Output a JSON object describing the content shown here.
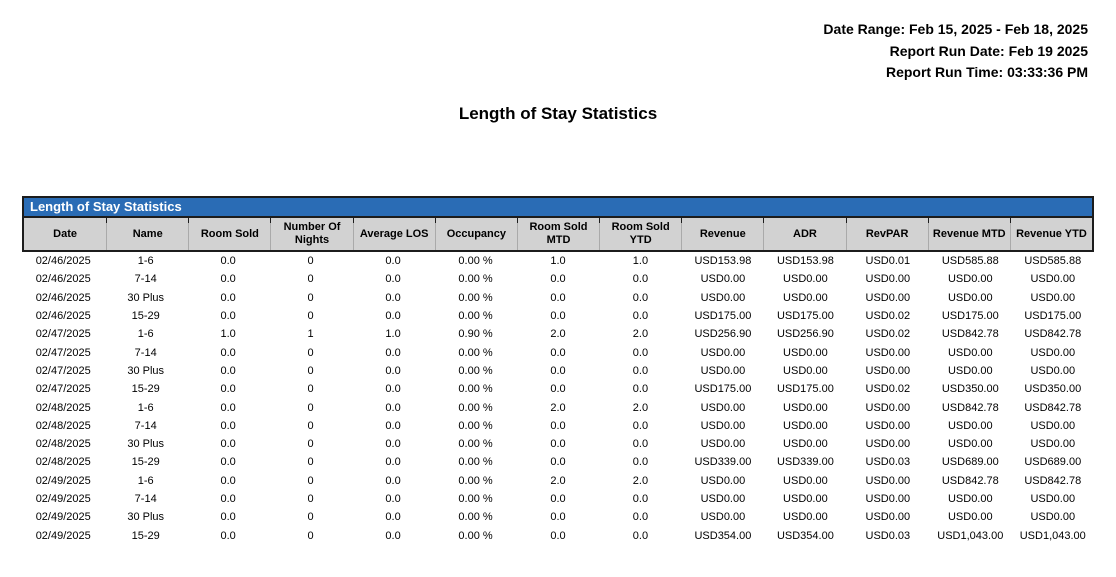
{
  "meta": {
    "date_range": "Date Range: Feb 15, 2025 - Feb 18, 2025",
    "report_run_date": "Report Run Date: Feb 19 2025",
    "report_run_time": "Report Run Time: 03:33:36 PM"
  },
  "page_title": "Length of Stay Statistics",
  "colors": {
    "table_title_bar": "#2a6cb5",
    "table_header_bg": "#d2d2d2",
    "border_dark": "#1c1c1c"
  },
  "table": {
    "title": "Length of Stay Statistics",
    "columns": [
      "Date",
      "Name",
      "Room Sold",
      "Number Of Nights",
      "Average LOS",
      "Occupancy",
      "Room Sold MTD",
      "Room Sold YTD",
      "Revenue",
      "ADR",
      "RevPAR",
      "Revenue MTD",
      "Revenue YTD"
    ],
    "rows": [
      [
        "02/46/2025",
        "1-6",
        "0.0",
        "0",
        "0.0",
        "0.00 %",
        "1.0",
        "1.0",
        "USD153.98",
        "USD153.98",
        "USD0.01",
        "USD585.88",
        "USD585.88"
      ],
      [
        "02/46/2025",
        "7-14",
        "0.0",
        "0",
        "0.0",
        "0.00 %",
        "0.0",
        "0.0",
        "USD0.00",
        "USD0.00",
        "USD0.00",
        "USD0.00",
        "USD0.00"
      ],
      [
        "02/46/2025",
        "30 Plus",
        "0.0",
        "0",
        "0.0",
        "0.00 %",
        "0.0",
        "0.0",
        "USD0.00",
        "USD0.00",
        "USD0.00",
        "USD0.00",
        "USD0.00"
      ],
      [
        "02/46/2025",
        "15-29",
        "0.0",
        "0",
        "0.0",
        "0.00 %",
        "0.0",
        "0.0",
        "USD175.00",
        "USD175.00",
        "USD0.02",
        "USD175.00",
        "USD175.00"
      ],
      [
        "02/47/2025",
        "1-6",
        "1.0",
        "1",
        "1.0",
        "0.90 %",
        "2.0",
        "2.0",
        "USD256.90",
        "USD256.90",
        "USD0.02",
        "USD842.78",
        "USD842.78"
      ],
      [
        "02/47/2025",
        "7-14",
        "0.0",
        "0",
        "0.0",
        "0.00 %",
        "0.0",
        "0.0",
        "USD0.00",
        "USD0.00",
        "USD0.00",
        "USD0.00",
        "USD0.00"
      ],
      [
        "02/47/2025",
        "30 Plus",
        "0.0",
        "0",
        "0.0",
        "0.00 %",
        "0.0",
        "0.0",
        "USD0.00",
        "USD0.00",
        "USD0.00",
        "USD0.00",
        "USD0.00"
      ],
      [
        "02/47/2025",
        "15-29",
        "0.0",
        "0",
        "0.0",
        "0.00 %",
        "0.0",
        "0.0",
        "USD175.00",
        "USD175.00",
        "USD0.02",
        "USD350.00",
        "USD350.00"
      ],
      [
        "02/48/2025",
        "1-6",
        "0.0",
        "0",
        "0.0",
        "0.00 %",
        "2.0",
        "2.0",
        "USD0.00",
        "USD0.00",
        "USD0.00",
        "USD842.78",
        "USD842.78"
      ],
      [
        "02/48/2025",
        "7-14",
        "0.0",
        "0",
        "0.0",
        "0.00 %",
        "0.0",
        "0.0",
        "USD0.00",
        "USD0.00",
        "USD0.00",
        "USD0.00",
        "USD0.00"
      ],
      [
        "02/48/2025",
        "30 Plus",
        "0.0",
        "0",
        "0.0",
        "0.00 %",
        "0.0",
        "0.0",
        "USD0.00",
        "USD0.00",
        "USD0.00",
        "USD0.00",
        "USD0.00"
      ],
      [
        "02/48/2025",
        "15-29",
        "0.0",
        "0",
        "0.0",
        "0.00 %",
        "0.0",
        "0.0",
        "USD339.00",
        "USD339.00",
        "USD0.03",
        "USD689.00",
        "USD689.00"
      ],
      [
        "02/49/2025",
        "1-6",
        "0.0",
        "0",
        "0.0",
        "0.00 %",
        "2.0",
        "2.0",
        "USD0.00",
        "USD0.00",
        "USD0.00",
        "USD842.78",
        "USD842.78"
      ],
      [
        "02/49/2025",
        "7-14",
        "0.0",
        "0",
        "0.0",
        "0.00 %",
        "0.0",
        "0.0",
        "USD0.00",
        "USD0.00",
        "USD0.00",
        "USD0.00",
        "USD0.00"
      ],
      [
        "02/49/2025",
        "30 Plus",
        "0.0",
        "0",
        "0.0",
        "0.00 %",
        "0.0",
        "0.0",
        "USD0.00",
        "USD0.00",
        "USD0.00",
        "USD0.00",
        "USD0.00"
      ],
      [
        "02/49/2025",
        "15-29",
        "0.0",
        "0",
        "0.0",
        "0.00 %",
        "0.0",
        "0.0",
        "USD354.00",
        "USD354.00",
        "USD0.03",
        "USD1,043.00",
        "USD1,043.00"
      ]
    ]
  }
}
